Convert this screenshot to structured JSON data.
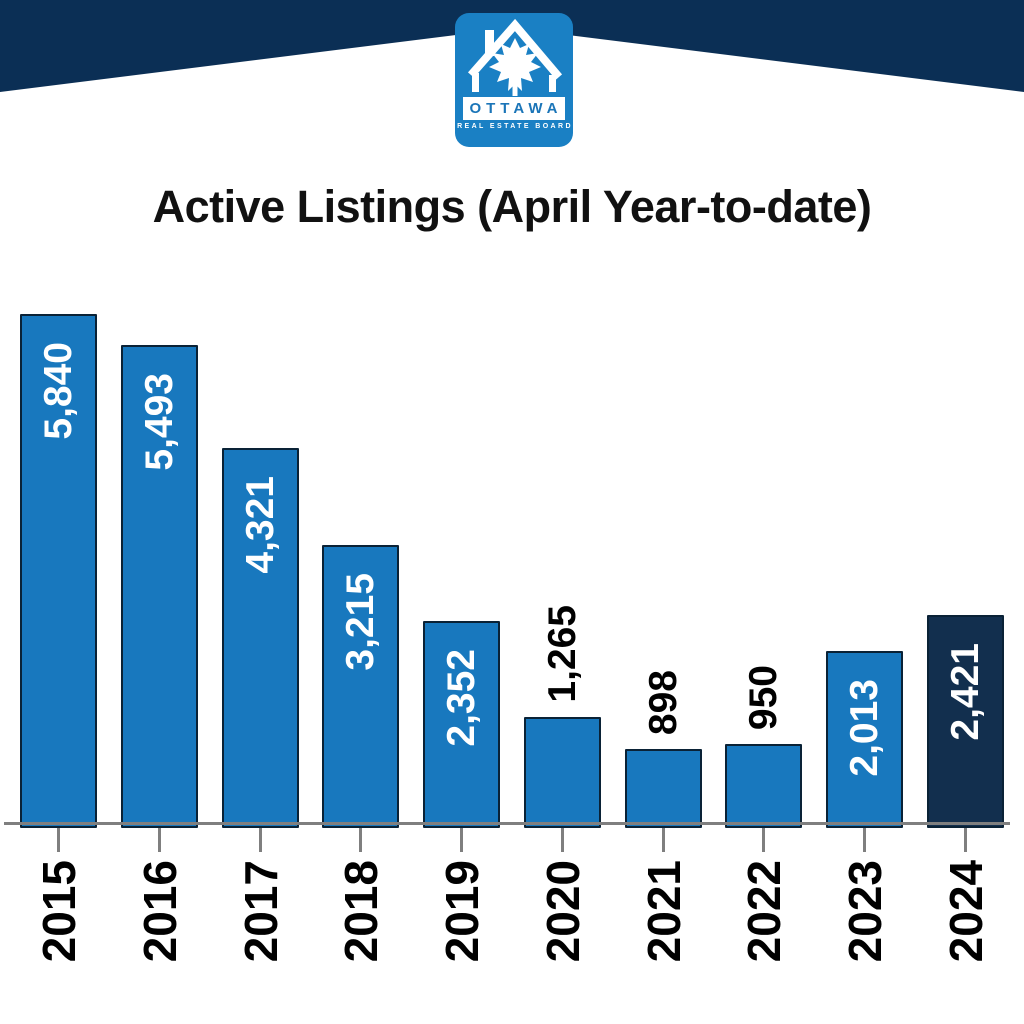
{
  "logo": {
    "name": "OTTAWA",
    "subtitle": "REAL ESTATE BOARD"
  },
  "title": "Active Listings (April Year-to-date)",
  "chart_data": {
    "type": "bar",
    "title": "Active Listings (April Year-to-date)",
    "categories": [
      "2015",
      "2016",
      "2017",
      "2018",
      "2019",
      "2020",
      "2021",
      "2022",
      "2023",
      "2024"
    ],
    "values": [
      5840,
      5493,
      4321,
      3215,
      2352,
      1265,
      898,
      950,
      2013,
      2421
    ],
    "value_labels": [
      "5,840",
      "5,493",
      "4,321",
      "3,215",
      "2,352",
      "1,265",
      "898",
      "950",
      "2,013",
      "2,421"
    ],
    "label_placement": [
      "inside",
      "inside",
      "inside",
      "inside",
      "inside",
      "outside",
      "outside",
      "outside",
      "inside",
      "inside"
    ],
    "label_rotation_degrees": -90,
    "highlight_index": 9,
    "xlabel": "",
    "ylabel": "",
    "ylim": [
      0,
      6000
    ],
    "gridlines": false,
    "legend": null,
    "bar_color": "#1878BE",
    "highlight_color": "#122F4E"
  },
  "colors": {
    "band_navy": "#0B2F55",
    "logo_blue": "#1A80C4",
    "logo_text_blue": "#1B75B8",
    "bar_blue": "#1878BE",
    "bar_navy": "#122F4E",
    "bar_outline": "#0A2236",
    "axis_gray": "#7F7F7F",
    "inside_label": "#FFFFFF",
    "outside_label": "#000000",
    "title_color": "#111111"
  }
}
